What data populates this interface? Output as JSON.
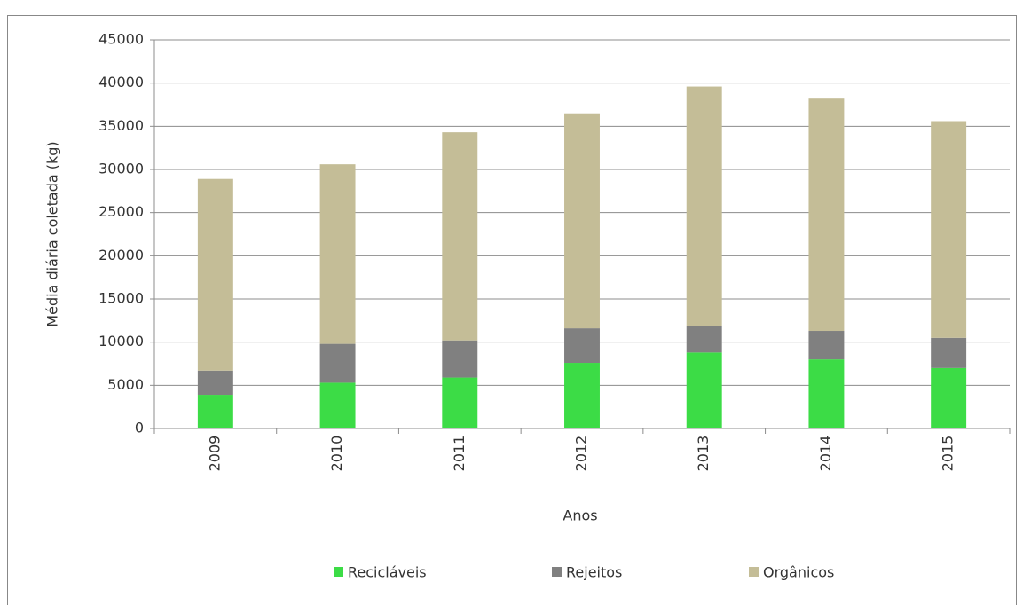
{
  "chart_data": {
    "type": "stacked_bar",
    "y_label": "Média diária coletada (kg)",
    "x_label": "Anos",
    "categories": [
      "2009",
      "2010",
      "2011",
      "2012",
      "2013",
      "2014",
      "2015"
    ],
    "series": [
      {
        "name": "Recicláveis",
        "color": "#3cdc46",
        "values": [
          3900,
          5300,
          5900,
          7600,
          8800,
          8000,
          7000
        ]
      },
      {
        "name": "Rejeitos",
        "color": "#808080",
        "values": [
          2800,
          4500,
          4300,
          4000,
          3100,
          3300,
          3500
        ]
      },
      {
        "name": "Orgânicos",
        "color": "#c4bd97",
        "values": [
          22200,
          20800,
          24100,
          24900,
          27700,
          26900,
          25100
        ]
      }
    ],
    "ylim": [
      0,
      45000
    ],
    "yticks": [
      0,
      5000,
      10000,
      15000,
      20000,
      25000,
      30000,
      35000,
      40000,
      45000
    ],
    "grid": true,
    "legend": "bottom"
  }
}
